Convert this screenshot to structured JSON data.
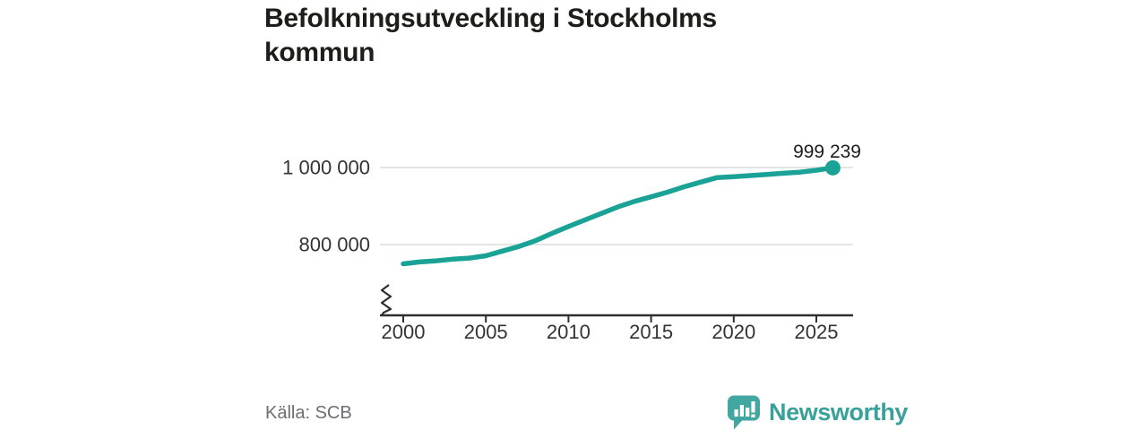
{
  "header": {
    "title": "Befolkningsutveckling i Stockholms kommun"
  },
  "footer": {
    "source_label": "Källa: SCB",
    "brand": {
      "name": "Newsworthy",
      "icon": "newsworthy-speech-bubble-bar-chart-icon"
    }
  },
  "colors": {
    "line": "#1aa296",
    "grid": "#dcdcdc",
    "axis": "#2f2f2f",
    "tick_text": "#333333",
    "title_text": "#1d1d1b",
    "end_label_text": "#1d1d1d",
    "source_text": "#6d6d75",
    "brand_teal": "#3aa09a",
    "brand_bubble": "#41a7a0"
  },
  "chart_data": {
    "type": "line",
    "title": "Befolkningsutveckling i Stockholms kommun",
    "x": [
      2000,
      2001,
      2002,
      2003,
      2004,
      2005,
      2006,
      2007,
      2008,
      2009,
      2010,
      2011,
      2012,
      2013,
      2014,
      2015,
      2016,
      2017,
      2018,
      2019,
      2020,
      2021,
      2022,
      2023,
      2024,
      2025,
      2026
    ],
    "series": [
      {
        "name": "Befolkning",
        "values": [
          750000,
          755000,
          758000,
          762000,
          765000,
          771000,
          783000,
          795000,
          810000,
          829000,
          847000,
          864000,
          881000,
          898000,
          912000,
          924000,
          936000,
          950000,
          962000,
          974000,
          976000,
          979000,
          982000,
          985000,
          988000,
          993000,
          999239
        ]
      }
    ],
    "end_value": 999239,
    "end_label": "999 239",
    "xlabel": "",
    "ylabel": "",
    "xticks": [
      2000,
      2005,
      2010,
      2015,
      2020,
      2025
    ],
    "yticks": [
      {
        "value": 1000000,
        "label": "1 000 000"
      },
      {
        "value": 800000,
        "label": "800 000"
      }
    ],
    "ylim": [
      800000,
      1000000
    ],
    "axis_break": true,
    "grid": "horizontal",
    "legend": "none"
  }
}
